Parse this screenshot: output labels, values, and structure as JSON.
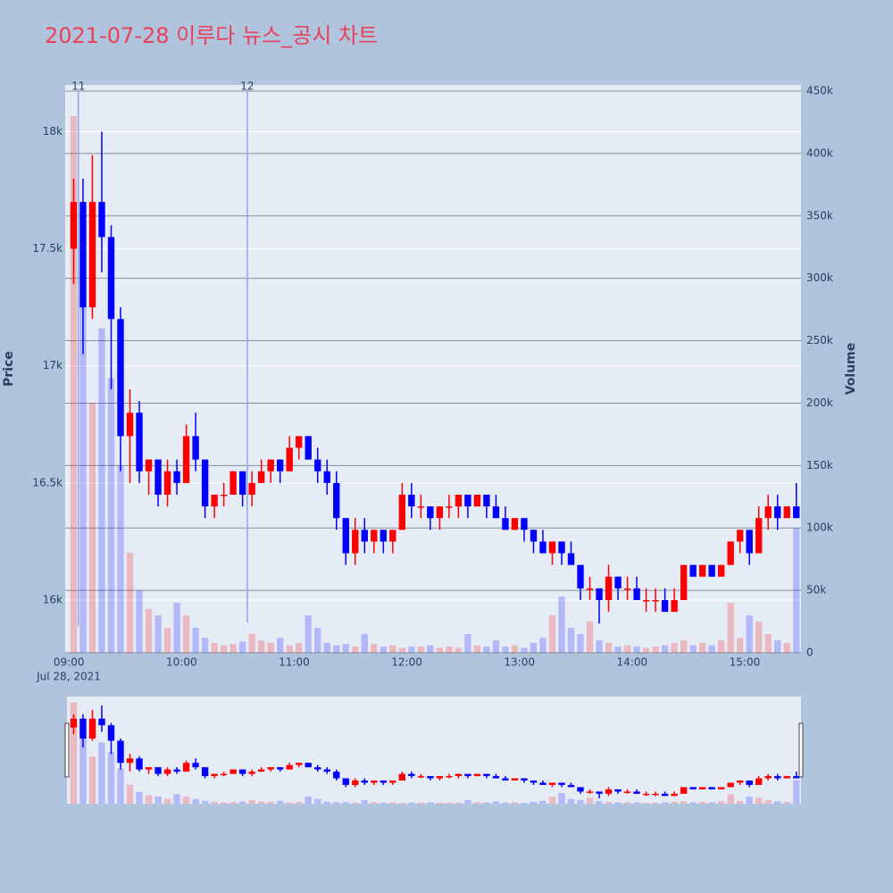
{
  "chart_data": {
    "type": "candlestick",
    "title": "2021-07-28 이루다 뉴스_공시 차트",
    "y_label": "Price",
    "y2_label": "Volume",
    "date_label": "Jul 28, 2021",
    "x": [
      "09:00",
      "09:05",
      "09:10",
      "09:15",
      "09:20",
      "09:25",
      "09:30",
      "09:35",
      "09:40",
      "09:45",
      "09:50",
      "09:55",
      "10:00",
      "10:05",
      "10:10",
      "10:15",
      "10:20",
      "10:25",
      "10:30",
      "10:35",
      "10:40",
      "10:45",
      "10:50",
      "10:55",
      "11:00",
      "11:05",
      "11:10",
      "11:15",
      "11:20",
      "11:25",
      "11:30",
      "11:35",
      "11:40",
      "11:45",
      "11:50",
      "11:55",
      "12:00",
      "12:05",
      "12:10",
      "12:15",
      "12:20",
      "12:25",
      "12:30",
      "12:35",
      "12:40",
      "12:45",
      "12:50",
      "12:55",
      "13:00",
      "13:05",
      "13:10",
      "13:15",
      "13:20",
      "13:25",
      "13:30",
      "13:35",
      "13:40",
      "13:45",
      "13:50",
      "13:55",
      "14:00",
      "14:05",
      "14:10",
      "14:15",
      "14:20",
      "14:25",
      "14:30",
      "14:35",
      "14:40",
      "14:45",
      "14:50",
      "14:55",
      "15:00",
      "15:05",
      "15:10",
      "15:15",
      "15:20",
      "15:25"
    ],
    "open": [
      17500,
      17700,
      17250,
      17700,
      17550,
      17200,
      16700,
      16800,
      16550,
      16600,
      16450,
      16550,
      16500,
      16700,
      16600,
      16400,
      16450,
      16450,
      16550,
      16450,
      16500,
      16550,
      16600,
      16550,
      16650,
      16700,
      16600,
      16550,
      16500,
      16350,
      16200,
      16300,
      16250,
      16300,
      16250,
      16300,
      16450,
      16400,
      16400,
      16350,
      16400,
      16400,
      16450,
      16400,
      16450,
      16400,
      16350,
      16300,
      16350,
      16300,
      16250,
      16200,
      16250,
      16200,
      16150,
      16050,
      16050,
      16000,
      16100,
      16050,
      16050,
      16000,
      16000,
      16000,
      15950,
      16000,
      16150,
      16100,
      16150,
      16100,
      16150,
      16250,
      16300,
      16200,
      16350,
      16400,
      16350,
      16400
    ],
    "high": [
      17800,
      17800,
      17900,
      18000,
      17600,
      17250,
      16900,
      16850,
      16600,
      16600,
      16600,
      16600,
      16750,
      16800,
      16600,
      16450,
      16500,
      16550,
      16550,
      16550,
      16600,
      16600,
      16600,
      16700,
      16700,
      16700,
      16650,
      16600,
      16550,
      16350,
      16350,
      16350,
      16300,
      16300,
      16300,
      16500,
      16500,
      16450,
      16400,
      16400,
      16450,
      16450,
      16450,
      16450,
      16450,
      16450,
      16400,
      16350,
      16350,
      16300,
      16300,
      16250,
      16250,
      16250,
      16150,
      16100,
      16050,
      16150,
      16100,
      16100,
      16100,
      16050,
      16050,
      16050,
      16050,
      16150,
      16150,
      16150,
      16150,
      16150,
      16250,
      16300,
      16300,
      16400,
      16450,
      16450,
      16400,
      16500
    ],
    "low": [
      17350,
      17050,
      17200,
      17400,
      16900,
      16550,
      16500,
      16500,
      16450,
      16400,
      16400,
      16450,
      16500,
      16550,
      16350,
      16350,
      16400,
      16450,
      16400,
      16400,
      16500,
      16500,
      16500,
      16550,
      16600,
      16600,
      16500,
      16450,
      16300,
      16150,
      16150,
      16200,
      16200,
      16200,
      16200,
      16300,
      16350,
      16350,
      16300,
      16300,
      16350,
      16350,
      16350,
      16400,
      16350,
      16350,
      16300,
      16300,
      16250,
      16200,
      16200,
      16150,
      16150,
      16150,
      16000,
      16000,
      15900,
      15950,
      16000,
      16000,
      16000,
      15950,
      15950,
      15950,
      15950,
      16000,
      16100,
      16100,
      16100,
      16100,
      16150,
      16200,
      16150,
      16200,
      16300,
      16300,
      16350,
      16350
    ],
    "close": [
      17700,
      17250,
      17700,
      17550,
      17200,
      16700,
      16800,
      16550,
      16600,
      16450,
      16550,
      16500,
      16700,
      16600,
      16400,
      16450,
      16450,
      16550,
      16450,
      16500,
      16550,
      16600,
      16550,
      16650,
      16700,
      16600,
      16550,
      16500,
      16350,
      16200,
      16300,
      16250,
      16300,
      16250,
      16300,
      16450,
      16400,
      16400,
      16350,
      16400,
      16400,
      16450,
      16400,
      16450,
      16400,
      16350,
      16300,
      16350,
      16300,
      16250,
      16200,
      16250,
      16200,
      16150,
      16050,
      16050,
      16000,
      16100,
      16050,
      16050,
      16000,
      16000,
      16000,
      15950,
      16000,
      16150,
      16100,
      16150,
      16100,
      16150,
      16250,
      16300,
      16200,
      16350,
      16400,
      16350,
      16400,
      16350
    ],
    "volume": [
      430000,
      280000,
      200000,
      260000,
      220000,
      150000,
      80000,
      50000,
      35000,
      30000,
      20000,
      40000,
      30000,
      20000,
      12000,
      8000,
      6000,
      7000,
      9000,
      15000,
      10000,
      8000,
      12000,
      6000,
      8000,
      30000,
      20000,
      8000,
      6000,
      7000,
      5000,
      15000,
      7000,
      5000,
      6000,
      4000,
      5000,
      5000,
      6000,
      4000,
      5000,
      4000,
      15000,
      6000,
      5000,
      10000,
      5000,
      6000,
      4000,
      8000,
      12000,
      30000,
      45000,
      20000,
      15000,
      25000,
      10000,
      8000,
      5000,
      6000,
      5000,
      4000,
      5000,
      6000,
      8000,
      10000,
      6000,
      8000,
      6000,
      10000,
      40000,
      12000,
      30000,
      25000,
      15000,
      10000,
      8000,
      100000
    ],
    "increasing_color": "#ff0000",
    "decreasing_color": "#0000ff",
    "annotations": [
      {
        "x": "09:05",
        "text": "11"
      },
      {
        "x": "10:35",
        "text": "12"
      }
    ],
    "xlim": [
      "08:58",
      "15:30"
    ],
    "xticks": [
      "09:00",
      "10:00",
      "11:00",
      "12:00",
      "13:00",
      "14:00",
      "15:00"
    ],
    "ylim": [
      15775,
      18200
    ],
    "yticks": [
      {
        "value": 16000,
        "label": "16k"
      },
      {
        "value": 16500,
        "label": "16.5k"
      },
      {
        "value": 17000,
        "label": "17k"
      },
      {
        "value": 17500,
        "label": "17.5k"
      },
      {
        "value": 18000,
        "label": "18k"
      }
    ],
    "y2lim": [
      0,
      455000
    ],
    "y2ticks": [
      0,
      {
        "value": 50000,
        "label": "50k"
      },
      {
        "value": 100000,
        "label": "100k"
      },
      {
        "value": 150000,
        "label": "150k"
      },
      {
        "value": 200000,
        "label": "200k"
      },
      {
        "value": 250000,
        "label": "250k"
      },
      {
        "value": 300000,
        "label": "300k"
      },
      {
        "value": 350000,
        "label": "350k"
      },
      {
        "value": 400000,
        "label": "400k"
      },
      {
        "value": 450000,
        "label": "450k"
      }
    ],
    "grid": true,
    "range_slider": true
  }
}
